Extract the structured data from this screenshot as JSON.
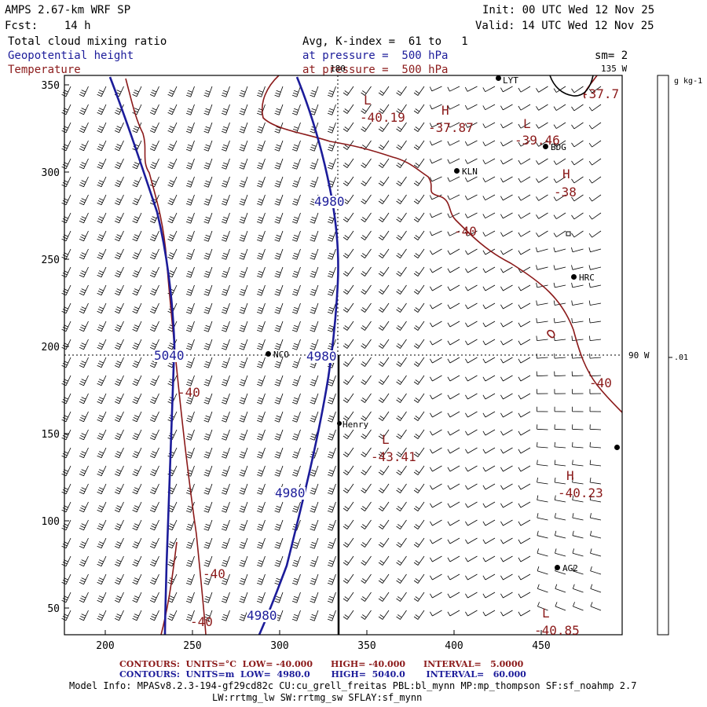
{
  "header": {
    "model_title": "AMPS 2.67-km WRF SP",
    "init": "Init: 00 UTC Wed 12 Nov 25",
    "forecast": "Fcst:    14 h",
    "valid": "Valid: 14 UTC Wed 12 Nov 25",
    "field1": "Total cloud mixing ratio",
    "field2": "Geopotential height",
    "field3": "Temperature",
    "avg": "Avg, K-index =  61 to   1",
    "pressure1": "at pressure =  500 hPa",
    "pressure2": "at pressure =  500 hPa",
    "smoothing": "sm= 2"
  },
  "axes": {
    "x_ticks": [
      "200",
      "250",
      "300",
      "350",
      "400",
      "450"
    ],
    "y_ticks": [
      "50",
      "100",
      "150",
      "200",
      "250",
      "300",
      "350"
    ]
  },
  "colorbar": {
    "units": "g kg-1",
    "tick_label": ".01"
  },
  "meridians": {
    "top": "180",
    "top_right": "135 W",
    "right": "90 W"
  },
  "stations": [
    {
      "name": "LYT"
    },
    {
      "name": "BDG"
    },
    {
      "name": "KLN"
    },
    {
      "name": "HRC"
    },
    {
      "name": "NCO"
    },
    {
      "name": "Henry"
    },
    {
      "name": "AG2"
    },
    {
      "name": ""
    }
  ],
  "contour_labels": {
    "temperature": [
      "-37.7",
      "-40.19",
      "-37.87",
      "-39.46",
      "-38",
      "-40",
      "-40",
      "-40",
      "-40",
      "-43.41",
      "-40.23",
      "-40",
      "-40.85"
    ],
    "height": [
      "4980",
      "5040",
      "4980",
      "4980",
      "4980"
    ],
    "extrema": [
      "L",
      "H",
      "L",
      "H",
      "L",
      "H",
      "L"
    ]
  },
  "footer": {
    "temp_contours": "CONTOURS:  UNITS=°C  LOW= -40.000      HIGH= -40.000      INTERVAL=   5.0000",
    "height_contours": "CONTOURS:  UNITS=m  LOW=  4980.0       HIGH=  5040.0       INTERVAL=   60.000",
    "model_info": "Model Info: MPASv8.2.3-194-gf29cd82c CU:cu_grell_freitas PBL:bl_mynn MP:mp_thompson SF:sf_noahmp 2.7",
    "model_info2": "LW:rrtmg_lw SW:rrtmg_sw SFLAY:sf_mynn"
  },
  "colors": {
    "temperature": "#8b1a1a",
    "height": "#1c1c9a",
    "barbs": "#000000"
  }
}
